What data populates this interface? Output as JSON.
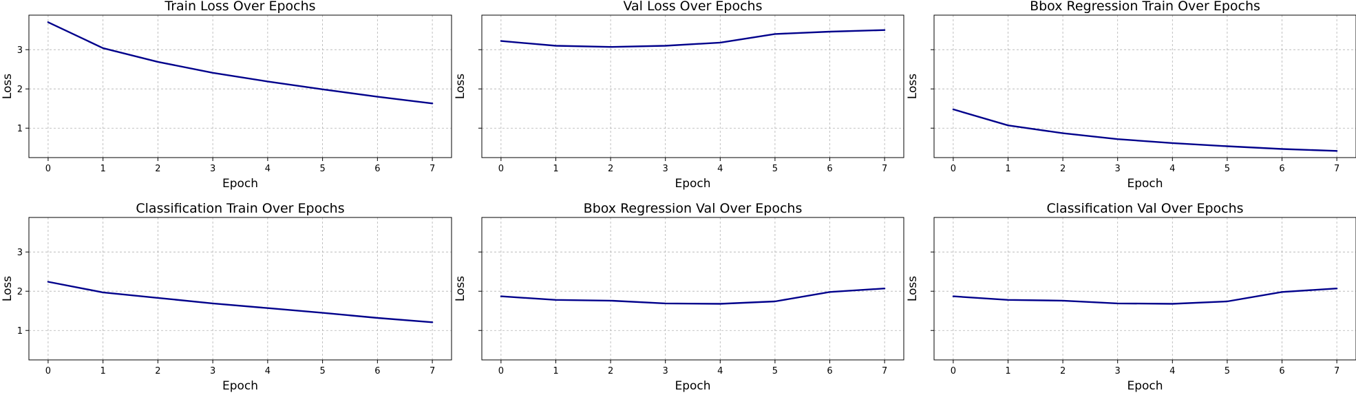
{
  "colors": {
    "line": "#00008b"
  },
  "chart_data": [
    {
      "type": "line",
      "title": "Train Loss Over Epochs",
      "xlabel": "Epoch",
      "ylabel": "Loss",
      "x": [
        0,
        1,
        2,
        3,
        4,
        5,
        6,
        7
      ],
      "series": [
        {
          "values": [
            3.7,
            3.04,
            2.69,
            2.41,
            2.19,
            1.99,
            1.8,
            1.63
          ]
        }
      ],
      "xlim": [
        -0.35,
        7.35
      ],
      "ylim": [
        0.25,
        3.88
      ],
      "yticks": [
        1,
        2,
        3
      ],
      "ytick_labels": [
        "1",
        "2",
        "3"
      ],
      "grid": true
    },
    {
      "type": "line",
      "title": "Val Loss Over Epochs",
      "xlabel": "Epoch",
      "ylabel": "Loss",
      "x": [
        0,
        1,
        2,
        3,
        4,
        5,
        6,
        7
      ],
      "series": [
        {
          "values": [
            3.22,
            3.1,
            3.07,
            3.1,
            3.18,
            3.4,
            3.46,
            3.5
          ]
        }
      ],
      "xlim": [
        -0.35,
        7.35
      ],
      "ylim": [
        0.25,
        3.88
      ],
      "yticks": [
        1,
        2,
        3
      ],
      "ytick_labels": [
        "",
        "",
        ""
      ],
      "grid": true
    },
    {
      "type": "line",
      "title": "Bbox Regression Train Over Epochs",
      "xlabel": "Epoch",
      "ylabel": "Loss",
      "x": [
        0,
        1,
        2,
        3,
        4,
        5,
        6,
        7
      ],
      "series": [
        {
          "values": [
            1.48,
            1.07,
            0.87,
            0.72,
            0.62,
            0.54,
            0.47,
            0.42
          ]
        }
      ],
      "xlim": [
        -0.35,
        7.35
      ],
      "ylim": [
        0.25,
        3.88
      ],
      "yticks": [
        1,
        2,
        3
      ],
      "ytick_labels": [
        "",
        "",
        ""
      ],
      "grid": true
    },
    {
      "type": "line",
      "title": "Classification Train Over Epochs",
      "xlabel": "Epoch",
      "ylabel": "Loss",
      "x": [
        0,
        1,
        2,
        3,
        4,
        5,
        6,
        7
      ],
      "series": [
        {
          "values": [
            2.24,
            1.97,
            1.83,
            1.69,
            1.57,
            1.45,
            1.32,
            1.21
          ]
        }
      ],
      "xlim": [
        -0.35,
        7.35
      ],
      "ylim": [
        0.25,
        3.88
      ],
      "yticks": [
        1,
        2,
        3
      ],
      "ytick_labels": [
        "1",
        "2",
        "3"
      ],
      "grid": true
    },
    {
      "type": "line",
      "title": "Bbox Regression Val Over Epochs",
      "xlabel": "Epoch",
      "ylabel": "Loss",
      "x": [
        0,
        1,
        2,
        3,
        4,
        5,
        6,
        7
      ],
      "series": [
        {
          "values": [
            1.87,
            1.78,
            1.76,
            1.69,
            1.68,
            1.74,
            1.98,
            2.07
          ]
        }
      ],
      "xlim": [
        -0.35,
        7.35
      ],
      "ylim": [
        0.25,
        3.88
      ],
      "yticks": [
        1,
        2,
        3
      ],
      "ytick_labels": [
        "",
        "",
        ""
      ],
      "grid": true
    },
    {
      "type": "line",
      "title": "Classification Val Over Epochs",
      "xlabel": "Epoch",
      "ylabel": "Loss",
      "x": [
        0,
        1,
        2,
        3,
        4,
        5,
        6,
        7
      ],
      "series": [
        {
          "values": [
            1.87,
            1.78,
            1.76,
            1.69,
            1.68,
            1.74,
            1.98,
            2.07
          ]
        }
      ],
      "xlim": [
        -0.35,
        7.35
      ],
      "ylim": [
        0.25,
        3.88
      ],
      "yticks": [
        1,
        2,
        3
      ],
      "ytick_labels": [
        "",
        "",
        ""
      ],
      "grid": true
    }
  ]
}
